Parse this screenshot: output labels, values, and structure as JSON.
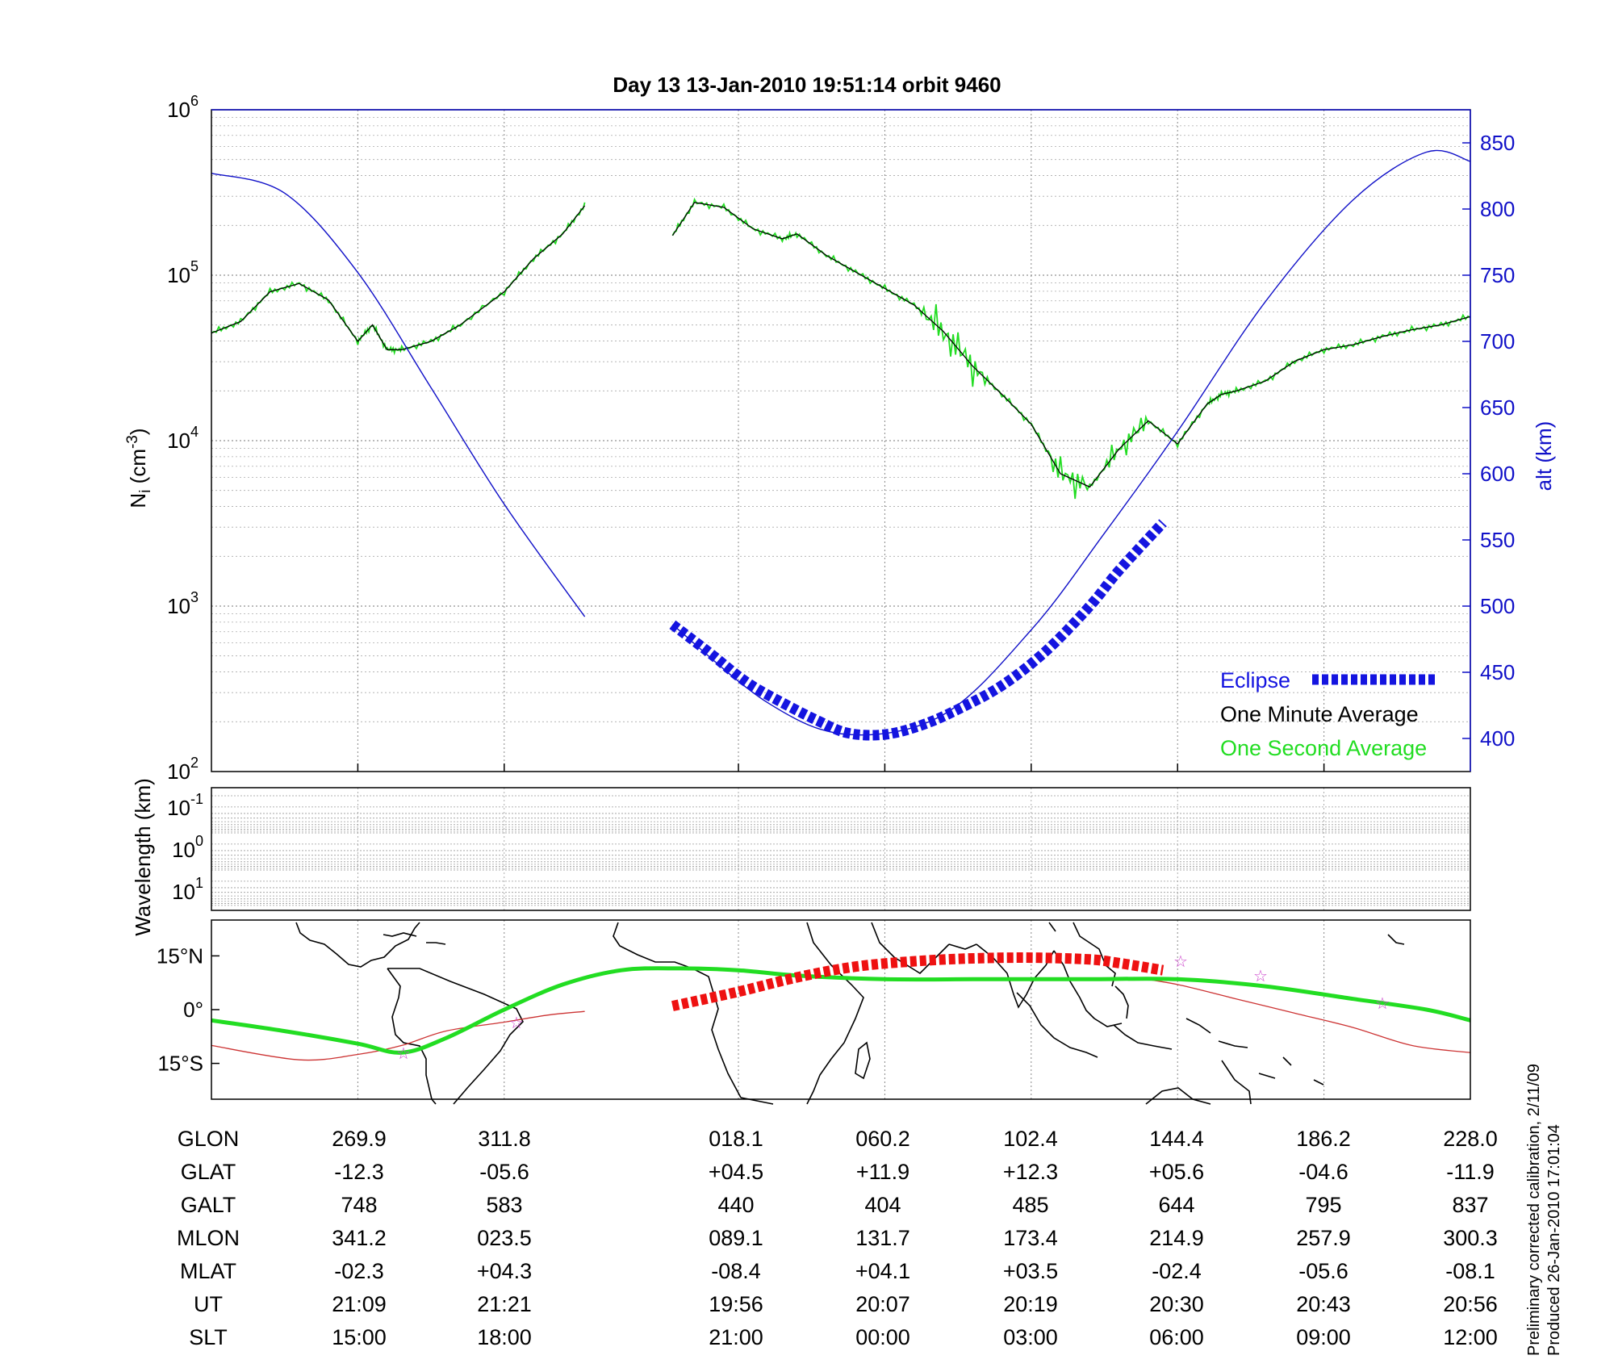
{
  "title": "Day 13  13-Jan-2010 19:51:14   orbit 9460",
  "colors": {
    "eclipse": "#1414e0",
    "minute_avg": "#000000",
    "second_avg": "#22dd22",
    "altitude": "#1010c8",
    "track": "#ee1111",
    "orbit_line": "#cc3333",
    "stars": "#cc44cc"
  },
  "chart_data": [
    {
      "id": "ion-density",
      "type": "line",
      "ylabel": "N_i (cm^-3)",
      "ylabel_main": "N",
      "ylabel_sub": "i",
      "ylabel_unit": " (cm",
      "ylabel_exp": "-3",
      "ylabel_close": ")",
      "yscale": "log",
      "ylim": [
        100,
        1000000
      ],
      "yticks": [
        {
          "base": "10",
          "exp": "2",
          "value": 100
        },
        {
          "base": "10",
          "exp": "3",
          "value": 1000
        },
        {
          "base": "10",
          "exp": "4",
          "value": 10000
        },
        {
          "base": "10",
          "exp": "5",
          "value": 100000
        },
        {
          "base": "10",
          "exp": "6",
          "value": 1000000
        }
      ],
      "y2label": "alt (km)",
      "y2lim": [
        375,
        875
      ],
      "y2ticks": [
        "400",
        "450",
        "500",
        "550",
        "600",
        "650",
        "700",
        "750",
        "800",
        "850"
      ],
      "xlim": [
        0,
        8.6
      ],
      "xgrid": [
        1,
        2,
        3.6,
        4.6,
        5.6,
        6.6,
        7.6
      ],
      "legend": [
        {
          "label": "Eclipse",
          "key": "eclipse"
        },
        {
          "label": "One Minute Average",
          "key": "minute_avg"
        },
        {
          "label": "One Second Average",
          "key": "second_avg"
        }
      ],
      "legend_position": "bottom-right",
      "series": [
        {
          "name": "One Minute Average (segment 1)",
          "x": [
            0,
            0.2,
            0.4,
            0.6,
            0.8,
            1.0,
            1.1,
            1.2,
            1.3,
            1.5,
            1.7,
            2.0,
            2.2,
            2.4,
            2.55
          ],
          "log_values": [
            4.65,
            4.72,
            4.9,
            4.95,
            4.85,
            4.6,
            4.7,
            4.55,
            4.55,
            4.6,
            4.7,
            4.9,
            5.1,
            5.25,
            5.42
          ]
        },
        {
          "name": "One Minute Average (segment 2)",
          "x": [
            3.15,
            3.3,
            3.5,
            3.7,
            3.9,
            4.0,
            4.2,
            4.4,
            4.6,
            4.8,
            5.0,
            5.2,
            5.4,
            5.6,
            5.8,
            6.0,
            6.2,
            6.4,
            6.6,
            6.8,
            6.9,
            7.0,
            7.2,
            7.4,
            7.6,
            7.8,
            8.0,
            8.2,
            8.4,
            8.6
          ],
          "log_values": [
            5.24,
            5.44,
            5.41,
            5.28,
            5.22,
            5.25,
            5.12,
            5.02,
            4.92,
            4.82,
            4.66,
            4.45,
            4.28,
            4.1,
            3.8,
            3.72,
            3.95,
            4.12,
            3.98,
            4.22,
            4.28,
            4.3,
            4.36,
            4.48,
            4.55,
            4.58,
            4.63,
            4.67,
            4.7,
            4.75
          ]
        },
        {
          "name": "Altitude",
          "axis": "right",
          "x": [
            0,
            0.5,
            1.0,
            1.5,
            2.0,
            2.55,
            3.15,
            3.8,
            4.35,
            5.0,
            5.6,
            6.1,
            6.6,
            7.2,
            7.8,
            8.3,
            8.6
          ],
          "values": [
            827,
            812,
            752,
            665,
            577,
            492,
            486,
            427,
            403,
            418,
            482,
            555,
            632,
            730,
            807,
            843,
            836
          ]
        },
        {
          "name": "Eclipse",
          "axis": "right",
          "x": [
            3.15,
            3.4,
            3.65,
            3.9,
            4.15,
            4.35,
            4.6,
            4.85,
            5.1,
            5.4,
            5.7,
            6.0,
            6.2,
            6.5
          ],
          "values": [
            486,
            465,
            443,
            427,
            413,
            404,
            403,
            410,
            422,
            440,
            466,
            500,
            527,
            563
          ]
        }
      ]
    },
    {
      "id": "wavelength",
      "type": "heatmap",
      "ylabel": "Wavelength (km)",
      "yticks": [
        {
          "base": "10",
          "exp": "-1"
        },
        {
          "base": "10",
          "exp": "0"
        },
        {
          "base": "10",
          "exp": "1"
        }
      ]
    },
    {
      "id": "ground-track",
      "type": "line",
      "yticks": [
        "15°N",
        "0°",
        "15°S"
      ],
      "ylim": [
        -25,
        25
      ],
      "series": [
        {
          "name": "Magnetic equator",
          "x": [
            0,
            0.6,
            1.0,
            1.3,
            1.6,
            2.0,
            2.3,
            2.55
          ],
          "values": [
            -10,
            -14,
            -12.5,
            -10,
            -6,
            -3.5,
            -1.5,
            -0.5
          ]
        },
        {
          "name": "Dip equator",
          "x": [
            0,
            0.5,
            1.0,
            1.3,
            1.6,
            2.0,
            2.4,
            2.8,
            3.2,
            3.6,
            4.0,
            4.6,
            5.2,
            5.6,
            6.0,
            6.6,
            7.2,
            7.8,
            8.3,
            8.6
          ],
          "values": [
            -3,
            -6,
            -9.5,
            -12,
            -8,
            0,
            7,
            11,
            11.5,
            11,
            9.5,
            8.5,
            8.5,
            8.5,
            8.5,
            8.5,
            6.5,
            3,
            0,
            -3
          ]
        },
        {
          "name": "Orbit track",
          "x": [
            6.3,
            6.6,
            7.0,
            7.4,
            7.8,
            8.2,
            8.6
          ],
          "values": [
            9,
            7,
            3,
            -1,
            -5,
            -10,
            -12
          ]
        },
        {
          "name": "Eclipse track",
          "x": [
            3.15,
            3.6,
            4.0,
            4.4,
            4.8,
            5.2,
            5.6,
            6.0,
            6.2,
            6.5
          ],
          "values": [
            1,
            5,
            9,
            12,
            13.5,
            14.3,
            14.5,
            14,
            13,
            11
          ]
        }
      ]
    }
  ],
  "table": {
    "row_labels": [
      "GLON",
      "GLAT",
      "GALT",
      "MLON",
      "MLAT",
      "UT",
      "SLT"
    ],
    "columns": [
      [
        "269.9",
        "-12.3",
        "748",
        "341.2",
        "-02.3",
        "21:09",
        "15:00"
      ],
      [
        "311.8",
        "-05.6",
        "583",
        "023.5",
        "+04.3",
        "21:21",
        "18:00"
      ],
      [
        "018.1",
        "+04.5",
        "440",
        "089.1",
        "-08.4",
        "19:56",
        "21:00"
      ],
      [
        "060.2",
        "+11.9",
        "404",
        "131.7",
        "+04.1",
        "20:07",
        "00:00"
      ],
      [
        "102.4",
        "+12.3",
        "485",
        "173.4",
        "+03.5",
        "20:19",
        "03:00"
      ],
      [
        "144.4",
        "+05.6",
        "644",
        "214.9",
        "-02.4",
        "20:30",
        "06:00"
      ],
      [
        "186.2",
        "-04.6",
        "795",
        "257.9",
        "-05.6",
        "20:43",
        "09:00"
      ],
      [
        "228.0",
        "-11.9",
        "837",
        "300.3",
        "-08.1",
        "20:56",
        "12:00"
      ]
    ]
  },
  "footnote": {
    "line1": "Preliminary corrected calibration, 2/11/09",
    "line2": "Produced 26-Jan-2010 17:01:04"
  }
}
